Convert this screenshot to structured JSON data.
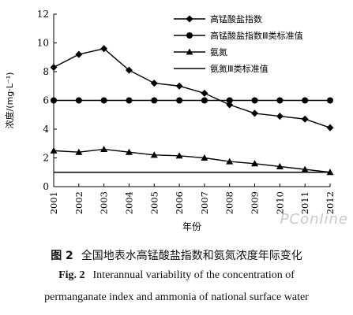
{
  "chart_data": {
    "type": "line",
    "x": [
      "2001",
      "2002",
      "2003",
      "2004",
      "2005",
      "2006",
      "2007",
      "2008",
      "2009",
      "2010",
      "2011",
      "2012"
    ],
    "ylabel": "浓度/(mg·L⁻¹)",
    "xlabel": "年份",
    "ylim": [
      0,
      12
    ],
    "yticks": [
      "0",
      "2",
      "4",
      "6",
      "8",
      "10",
      "12"
    ],
    "grid": false,
    "legend_placement": "top-right",
    "series": [
      {
        "name": "高锰酸盐指数",
        "marker": "diamond",
        "values": [
          8.3,
          9.2,
          9.6,
          8.1,
          7.2,
          7.0,
          6.5,
          5.7,
          5.1,
          4.9,
          4.7,
          4.1
        ]
      },
      {
        "name": "高锰酸盐指数Ⅲ类标准值",
        "marker": "circle",
        "values": [
          6,
          6,
          6,
          6,
          6,
          6,
          6,
          6,
          6,
          6,
          6,
          6
        ]
      },
      {
        "name": "氨氮",
        "marker": "triangle",
        "values": [
          2.5,
          2.4,
          2.6,
          2.4,
          2.2,
          2.15,
          2.0,
          1.75,
          1.6,
          1.4,
          1.2,
          1.0
        ]
      },
      {
        "name": "氨氮Ⅲ类标准值",
        "marker": "none",
        "values": [
          1,
          1,
          1,
          1,
          1,
          1,
          1,
          1,
          1,
          1,
          1,
          1
        ]
      }
    ],
    "series_color": "#000000"
  },
  "caption": {
    "cn_fig": "图 2",
    "cn_text": "全国地表水高锰酸盐指数和氨氮浓度年际变化",
    "en_fig": "Fig. 2",
    "en_line1": "Interannual variability of the concentration of",
    "en_line2": "permanganate index and ammonia of national surface water"
  },
  "watermark": "PConline"
}
